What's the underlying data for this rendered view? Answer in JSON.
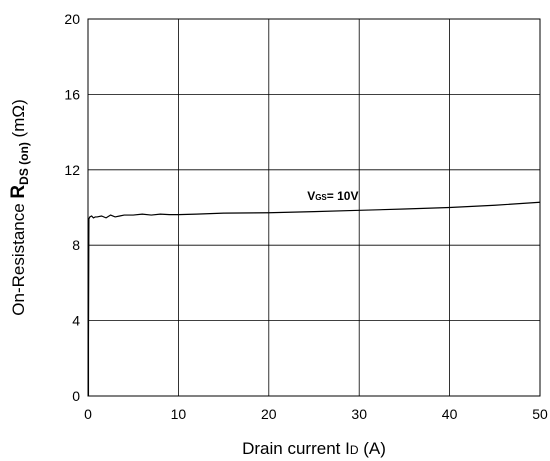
{
  "chart_data": {
    "type": "line",
    "title": "",
    "xlabel_parts": {
      "prefix": "Drain current I",
      "sub": "D",
      "suffix": " (A)"
    },
    "ylabel_parts": {
      "prefix": "On-Resistance ",
      "main": "R",
      "sub": "DS (on)",
      "suffix": " (mΩ)"
    },
    "xlim": [
      0,
      50
    ],
    "ylim": [
      0,
      20
    ],
    "xticks": [
      0,
      10,
      20,
      30,
      40,
      50
    ],
    "yticks": [
      0,
      4,
      8,
      12,
      16,
      20
    ],
    "grid": true,
    "series": [
      {
        "annotation_parts": {
          "main": "V",
          "sub": "GS",
          "suffix": "= 10V"
        },
        "x": [
          0.05,
          0.1,
          0.2,
          0.4,
          0.6,
          0.8,
          1,
          1.5,
          2,
          2.5,
          3,
          3.5,
          4,
          5,
          6,
          7,
          8,
          9,
          10,
          12,
          15,
          20,
          25,
          30,
          35,
          40,
          45,
          50
        ],
        "y": [
          2.9,
          9.4,
          9.5,
          9.55,
          9.45,
          9.5,
          9.5,
          9.55,
          9.45,
          9.6,
          9.5,
          9.55,
          9.6,
          9.6,
          9.65,
          9.6,
          9.65,
          9.62,
          9.62,
          9.65,
          9.7,
          9.72,
          9.78,
          9.85,
          9.92,
          10.0,
          10.12,
          10.28
        ]
      }
    ],
    "annotation_position": {
      "x": 30,
      "y": 10.4
    }
  }
}
